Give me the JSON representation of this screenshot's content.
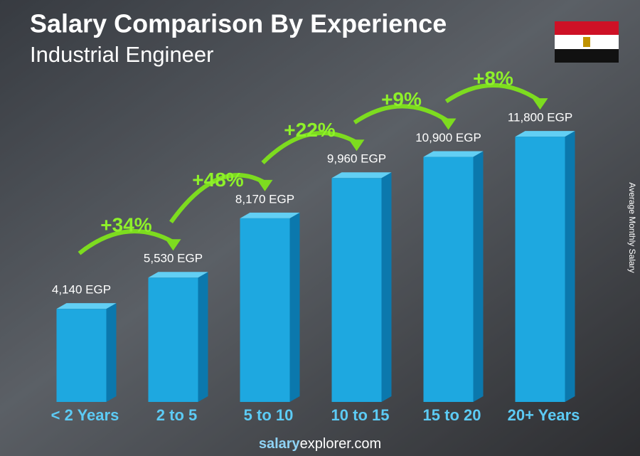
{
  "chart_data": {
    "type": "bar3d",
    "title": "Salary Comparison By Experience",
    "subtitle": "Industrial Engineer",
    "y_label": "Average Monthly Salary",
    "categories": [
      "< 2 Years",
      "2 to 5",
      "5 to 10",
      "10 to 15",
      "15 to 20",
      "20+ Years"
    ],
    "values": [
      4140,
      5530,
      8170,
      9960,
      10900,
      11800
    ],
    "value_labels": [
      "4,140 EGP",
      "5,530 EGP",
      "8,170 EGP",
      "9,960 EGP",
      "10,900 EGP",
      "11,800 EGP"
    ],
    "changes": [
      "+34%",
      "+48%",
      "+22%",
      "+9%",
      "+8%"
    ],
    "color": "#1ea8e0",
    "ylim": [
      0,
      12500
    ],
    "footer": [
      "salary",
      "explorer.com"
    ]
  }
}
